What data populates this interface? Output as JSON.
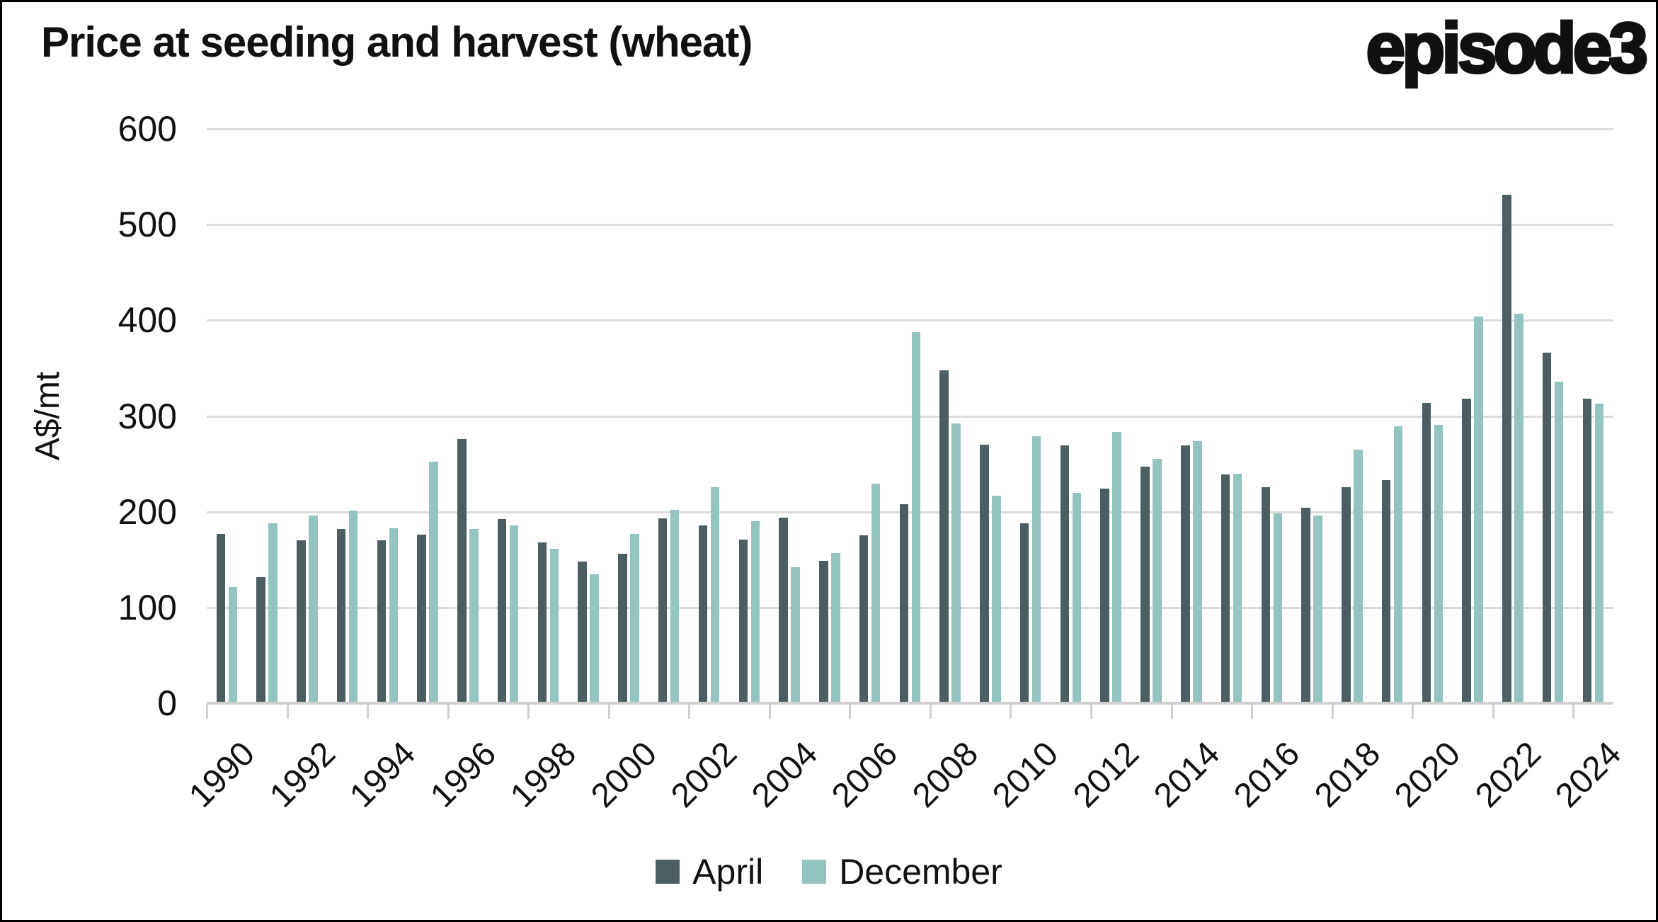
{
  "header": {
    "title": "Price at seeding and harvest (wheat)",
    "logo": "episode3"
  },
  "y_axis": {
    "label": "A$/mt",
    "ticks": [
      600,
      500,
      400,
      300,
      200,
      100,
      0
    ]
  },
  "x_axis": {
    "tick_labels": [
      "1990",
      "1992",
      "1994",
      "1996",
      "1998",
      "2000",
      "2002",
      "2004",
      "2006",
      "2008",
      "2010",
      "2012",
      "2014",
      "2016",
      "2018",
      "2020",
      "2022",
      "2024"
    ]
  },
  "legend": {
    "items": [
      "April",
      "December"
    ]
  },
  "colors": {
    "april": "#4c5e62",
    "december": "#95c3c0",
    "grid": "#dcdcdc",
    "axis": "#d0d0d0",
    "text": "#111111"
  },
  "chart_data": {
    "type": "bar",
    "title": "Price at seeding and harvest (wheat)",
    "xlabel": "",
    "ylabel": "A$/mt",
    "ylim": [
      0,
      600
    ],
    "ytick_step": 100,
    "grid": true,
    "legend_position": "bottom",
    "categories": [
      1990,
      1991,
      1992,
      1993,
      1994,
      1995,
      1996,
      1997,
      1998,
      1999,
      2000,
      2001,
      2002,
      2003,
      2004,
      2005,
      2006,
      2007,
      2008,
      2009,
      2010,
      2011,
      2012,
      2013,
      2014,
      2015,
      2016,
      2017,
      2018,
      2019,
      2020,
      2021,
      2022,
      2023,
      2024
    ],
    "series": [
      {
        "name": "April",
        "color": "#4c5e62",
        "values": [
          177,
          132,
          170,
          182,
          170,
          176,
          276,
          192,
          168,
          148,
          156,
          193,
          186,
          171,
          194,
          149,
          175,
          208,
          348,
          270,
          188,
          269,
          224,
          247,
          269,
          239,
          226,
          204,
          226,
          233,
          314,
          318,
          531,
          366,
          318
        ]
      },
      {
        "name": "December",
        "color": "#95c3c0",
        "values": [
          121,
          188,
          196,
          201,
          183,
          252,
          182,
          186,
          161,
          135,
          177,
          202,
          226,
          190,
          142,
          157,
          229,
          388,
          292,
          217,
          279,
          220,
          283,
          255,
          274,
          240,
          198,
          196,
          265,
          289,
          291,
          404,
          407,
          336,
          313
        ]
      }
    ]
  }
}
